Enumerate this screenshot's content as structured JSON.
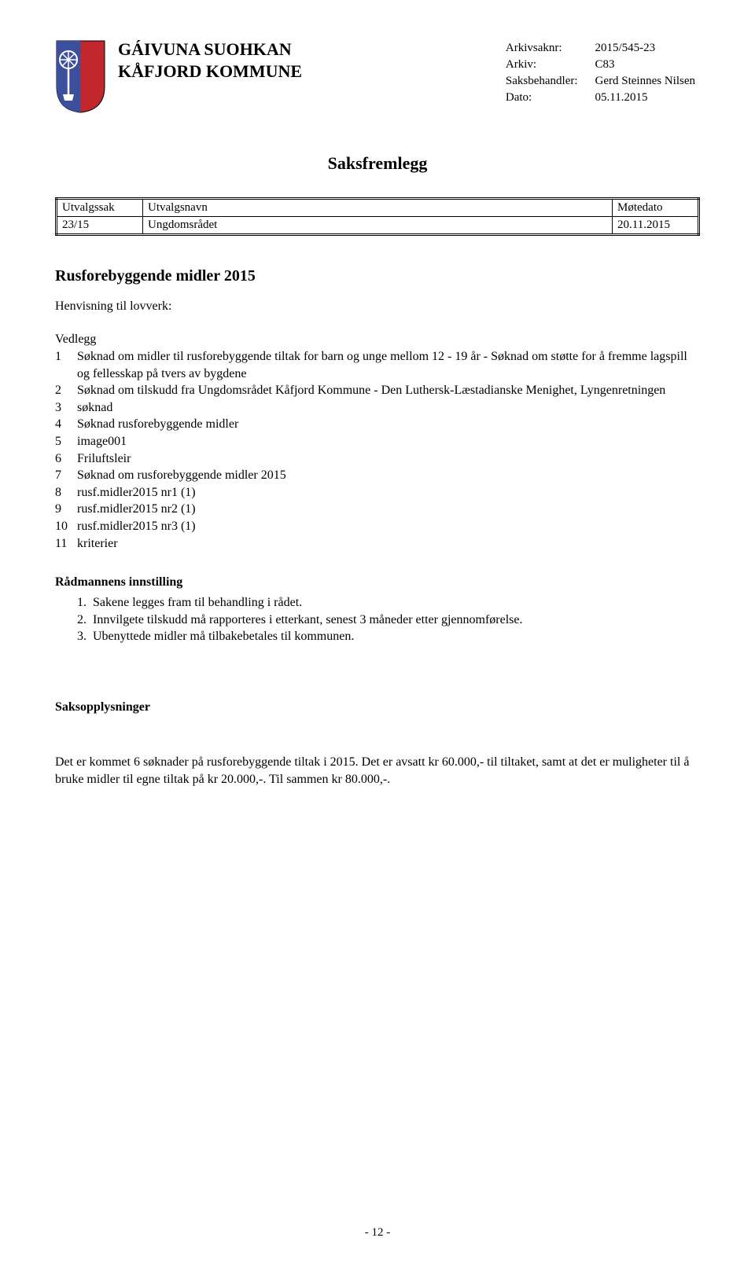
{
  "header": {
    "org_line1": "GÁIVUNA SUOHKAN",
    "org_line2": "KÅFJORD KOMMUNE",
    "crest_colors": {
      "blue": "#3b4f9a",
      "red": "#c1272d",
      "white": "#ffffff",
      "border": "#000000"
    }
  },
  "meta": {
    "arkivsaknr_label": "Arkivsaknr:",
    "arkivsaknr_value": "2015/545-23",
    "arkiv_label": "Arkiv:",
    "arkiv_value": "C83",
    "saksbehandler_label": "Saksbehandler:",
    "saksbehandler_value": "Gerd Steinnes Nilsen",
    "dato_label": "Dato:",
    "dato_value": "05.11.2015"
  },
  "doc_title": "Saksfremlegg",
  "utvalg": {
    "headers": [
      "Utvalgssak",
      "Utvalgsnavn",
      "Møtedato"
    ],
    "rows": [
      [
        "23/15",
        "Ungdomsrådet",
        "20.11.2015"
      ]
    ]
  },
  "rusforebyggende": {
    "title": "Rusforebyggende midler 2015",
    "henvisning": "Henvisning til lovverk:"
  },
  "vedlegg": {
    "label": "Vedlegg",
    "items": [
      "Søknad om midler til rusforebyggende tiltak for barn og unge mellom 12 - 19 år - Søknad om støtte for å fremme lagspill og fellesskap på tvers av bygdene",
      "Søknad om tilskudd fra Ungdomsrådet Kåfjord Kommune - Den Luthersk-Læstadianske Menighet, Lyngenretningen",
      "søknad",
      "Søknad rusforebyggende midler",
      "image001",
      "Friluftsleir",
      "Søknad om rusforebyggende midler 2015",
      "rusf.midler2015 nr1 (1)",
      "rusf.midler2015 nr2 (1)",
      "rusf.midler2015 nr3 (1)",
      "kriterier"
    ]
  },
  "radmann": {
    "title": "Rådmannens innstilling",
    "items": [
      "Sakene legges fram til behandling i rådet.",
      "Innvilgete tilskudd må rapporteres i etterkant, senest 3 måneder etter gjennomførelse.",
      "Ubenyttede midler må tilbakebetales til kommunen."
    ]
  },
  "saksopplysninger": {
    "title": "Saksopplysninger",
    "body": "Det er kommet 6 søknader på rusforebyggende tiltak i 2015. Det er avsatt kr 60.000,- til tiltaket, samt at det er muligheter til å bruke midler til egne tiltak på kr 20.000,-. Til sammen kr 80.000,-."
  },
  "page_number": "- 12 -"
}
